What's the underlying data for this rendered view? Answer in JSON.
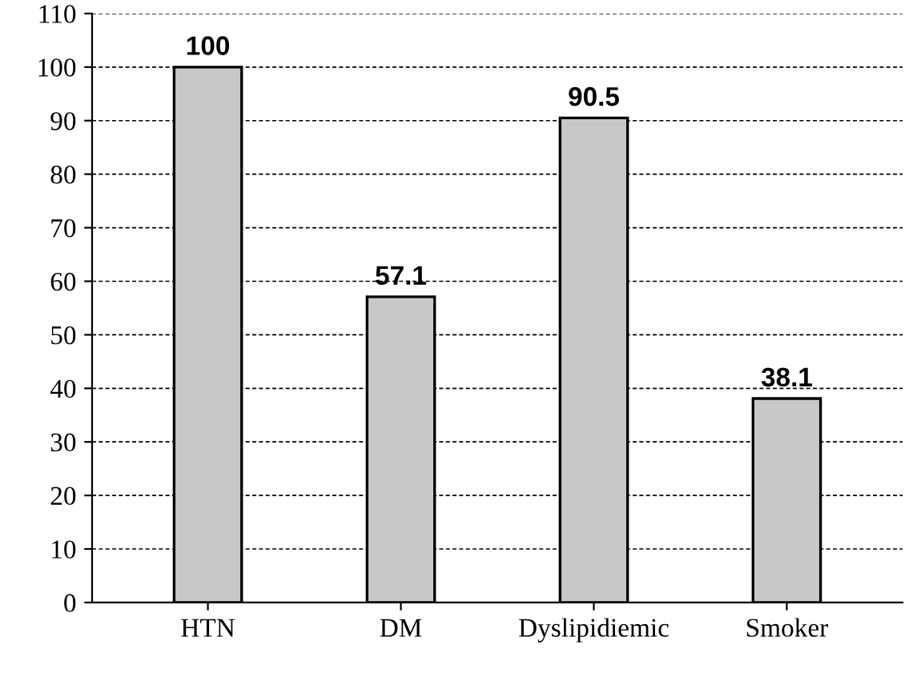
{
  "chart_data": {
    "type": "bar",
    "categories": [
      "HTN",
      "DM",
      "Dyslipidiemic",
      "Smoker"
    ],
    "values": [
      100,
      57.1,
      90.5,
      38.1
    ],
    "color": "#c8c8c8",
    "ylim": [
      0,
      110
    ],
    "yticks": [
      0,
      10,
      20,
      30,
      40,
      50,
      60,
      70,
      80,
      90,
      100,
      110
    ],
    "grid": "y",
    "data_labels": true
  }
}
